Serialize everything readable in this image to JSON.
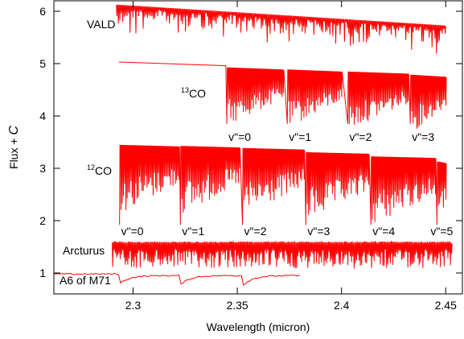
{
  "chart_data": {
    "type": "line",
    "title": "",
    "xlabel": "Wavelength (micron)",
    "ylabel": "Flux + C",
    "xlim": [
      2.262,
      2.458
    ],
    "ylim": [
      0.6,
      6.2
    ],
    "xticks": [
      2.3,
      2.35,
      2.4,
      2.45
    ],
    "xtick_labels": [
      "2.3",
      "2.35",
      "2.4",
      "2.45"
    ],
    "yticks": [
      1,
      2,
      3,
      4,
      5,
      6
    ],
    "ytick_labels": [
      "1",
      "2",
      "3",
      "4",
      "5",
      "6"
    ],
    "grid": false,
    "legend": "none",
    "line_color": "#ff0000",
    "series": [
      {
        "name": "VALD",
        "x_range": [
          2.292,
          2.45
        ],
        "continuum_start": 6.12,
        "continuum_end": 5.72,
        "line_density": "dense weak lines"
      },
      {
        "name": "13CO",
        "continuum_start": 5.03,
        "band_heads": [
          {
            "label": "v\"=0",
            "x": 2.345,
            "x_end": 2.372,
            "top": 4.92
          },
          {
            "label": "v\"=1",
            "x": 2.374,
            "x_end": 2.4,
            "top": 4.88
          },
          {
            "label": "v\"=2",
            "x": 2.403,
            "x_end": 2.432,
            "top": 4.84
          },
          {
            "label": "v\"=3",
            "x": 2.433,
            "x_end": 2.45,
            "top": 4.78
          }
        ]
      },
      {
        "name": "12CO",
        "band_heads": [
          {
            "label": "v\"=0",
            "x": 2.2935,
            "x_end": 2.322,
            "top": 3.44
          },
          {
            "label": "v\"=1",
            "x": 2.3227,
            "x_end": 2.351,
            "top": 3.42
          },
          {
            "label": "v\"=2",
            "x": 2.3525,
            "x_end": 2.382,
            "top": 3.38
          },
          {
            "label": "v\"=3",
            "x": 2.3829,
            "x_end": 2.413,
            "top": 3.3
          },
          {
            "label": "v\"=4",
            "x": 2.4141,
            "x_end": 2.445,
            "top": 3.22
          },
          {
            "label": "v\"=5",
            "x": 2.4458,
            "x_end": 2.45,
            "top": 3.12
          }
        ]
      },
      {
        "name": "Arcturus",
        "x_range": [
          2.29,
          2.453
        ],
        "continuum": 1.6,
        "depth": 0.5
      },
      {
        "name": "A6 of M71",
        "x_range": [
          2.262,
          2.38
        ],
        "continuum": 0.98,
        "band_heads": [
          2.2935,
          2.3227,
          2.3525
        ]
      }
    ],
    "labels": {
      "vald": "VALD",
      "co13_sup": "13",
      "co13": "CO",
      "co12_sup": "12",
      "co12": "CO",
      "arcturus": "Arcturus",
      "m71": "A6 of M71",
      "ylabel_main": "Flux + ",
      "ylabel_c": "C"
    }
  }
}
